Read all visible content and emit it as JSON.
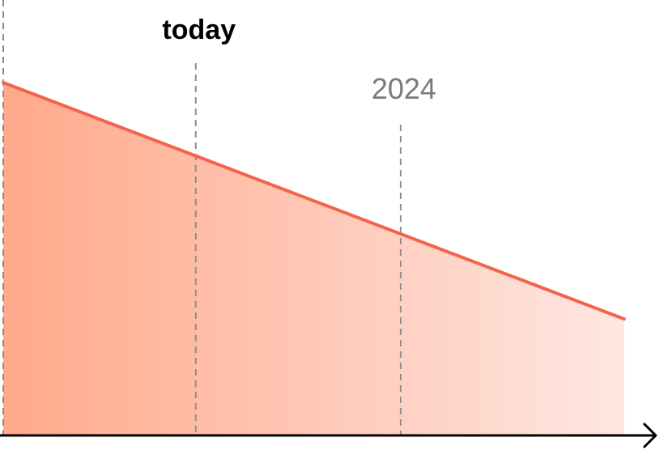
{
  "chart_data": {
    "type": "area",
    "title": "",
    "xlabel": "",
    "ylabel": "",
    "axis_ticks": false,
    "grid": false,
    "legend": "none",
    "x": [
      0,
      1
    ],
    "series": [
      {
        "values": [
          1.0,
          0.33
        ]
      }
    ],
    "ylim": [
      0,
      1.0
    ],
    "markers": [
      {
        "label": "today",
        "x": 0.31,
        "color": "#000000"
      },
      {
        "label": "2024",
        "x": 0.64,
        "color": "#7a7a7a"
      }
    ],
    "colors": {
      "line": "#f5634a",
      "fill_start": "#ffa98a",
      "fill_end": "#ffe7e2",
      "axis": "#000000",
      "guide": "#8c8c8c"
    }
  }
}
